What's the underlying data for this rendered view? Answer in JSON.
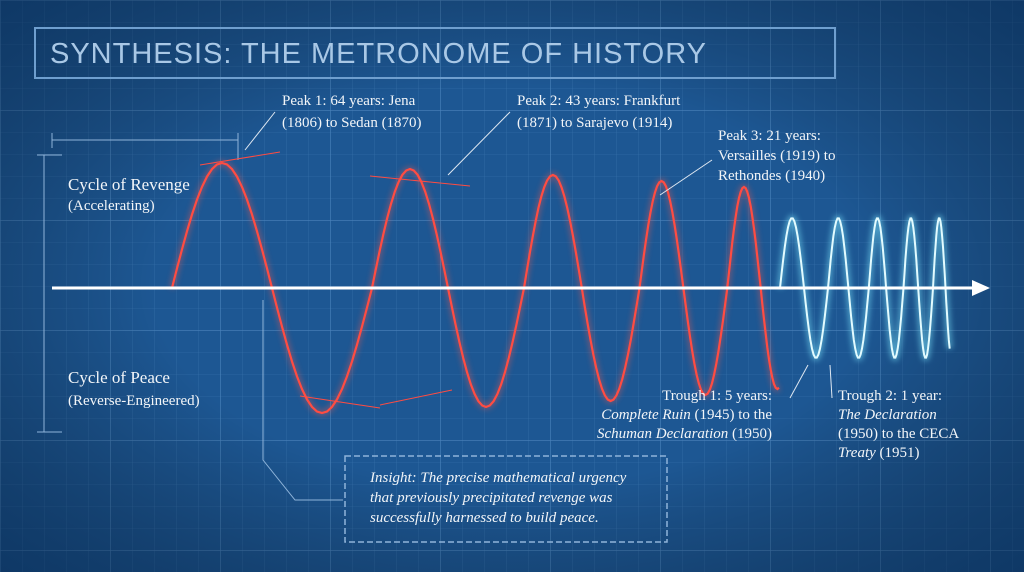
{
  "title": "SYNTHESIS: THE METRONOME OF HISTORY",
  "annotations": {
    "revenge": [
      [
        "Cycle of Revenge"
      ],
      [
        "(Accelerating)"
      ]
    ],
    "peace": [
      [
        "Cycle of Peace"
      ],
      [
        "(Reverse-Engineered)"
      ]
    ],
    "peak1": [
      [
        "Peak 1: 64 years: Jena"
      ],
      [
        "(1806) to Sedan (1870)"
      ]
    ],
    "peak2": [
      [
        "Peak 2: 43 years: Frankfurt"
      ],
      [
        "(1871) to Sarajevo (1914)"
      ]
    ],
    "peak3": [
      [
        "Peak 3: 21 years:"
      ],
      [
        "Versailles (1919) to"
      ],
      [
        "Rethondes (1940)"
      ]
    ],
    "trough1": [
      [
        "Trough 1: 5 years:"
      ],
      [
        {
          "text": "Complete Ruin",
          "italic": true
        },
        " (1945) to the"
      ],
      [
        {
          "text": "Schuman Declaration",
          "italic": true
        },
        " (1950)"
      ]
    ],
    "trough2": [
      [
        "Trough 2: 1 year:"
      ],
      [
        {
          "text": "The Declaration",
          "italic": true
        }
      ],
      [
        "(1950) to the CECA"
      ],
      [
        {
          "text": "Treaty",
          "italic": true
        },
        " (1951)"
      ]
    ],
    "insight": [
      [
        {
          "text": "Insight: The precise mathematical urgency",
          "italic": true
        }
      ],
      [
        {
          "text": "that previously precipitated revenge was",
          "italic": true
        }
      ],
      [
        {
          "text": "successfully harnessed to build peace.",
          "italic": true
        }
      ]
    ]
  }
}
